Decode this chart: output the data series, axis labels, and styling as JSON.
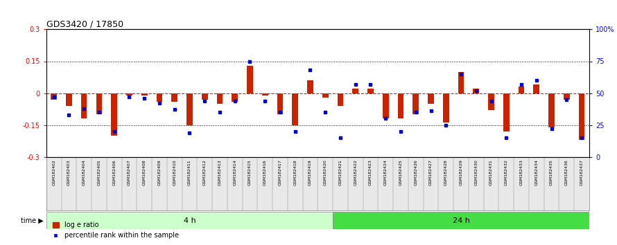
{
  "title": "GDS3420 / 17850",
  "samples": [
    "GSM182402",
    "GSM182403",
    "GSM182404",
    "GSM182405",
    "GSM182406",
    "GSM182407",
    "GSM182408",
    "GSM182409",
    "GSM182410",
    "GSM182411",
    "GSM182412",
    "GSM182413",
    "GSM182414",
    "GSM182415",
    "GSM182416",
    "GSM182417",
    "GSM182418",
    "GSM182419",
    "GSM182420",
    "GSM182421",
    "GSM182422",
    "GSM182423",
    "GSM182424",
    "GSM182425",
    "GSM182426",
    "GSM182427",
    "GSM182428",
    "GSM182429",
    "GSM182430",
    "GSM182431",
    "GSM182432",
    "GSM182433",
    "GSM182434",
    "GSM182435",
    "GSM182436",
    "GSM182437"
  ],
  "log_ratio": [
    -0.03,
    -0.06,
    -0.12,
    -0.1,
    -0.2,
    -0.01,
    -0.01,
    -0.04,
    -0.04,
    -0.15,
    -0.03,
    -0.05,
    -0.04,
    0.13,
    -0.01,
    -0.1,
    -0.15,
    0.06,
    -0.02,
    -0.06,
    0.02,
    0.02,
    -0.12,
    -0.12,
    -0.1,
    -0.05,
    -0.14,
    0.1,
    0.02,
    -0.08,
    -0.18,
    0.03,
    0.04,
    -0.16,
    -0.03,
    -0.22
  ],
  "percentile": [
    47,
    33,
    38,
    35,
    20,
    47,
    46,
    42,
    37,
    19,
    44,
    35,
    44,
    75,
    44,
    35,
    20,
    68,
    35,
    15,
    57,
    57,
    30,
    20,
    35,
    36,
    25,
    65,
    52,
    44,
    15,
    57,
    60,
    22,
    45,
    15
  ],
  "group1_count": 19,
  "group2_count": 17,
  "group1_label": "4 h",
  "group2_label": "24 h",
  "group1_color": "#ccffcc",
  "group2_color": "#44dd44",
  "bar_color": "#cc2200",
  "dot_color": "#0000cc",
  "ylim_left": [
    -0.3,
    0.3
  ],
  "ylim_right": [
    0,
    100
  ],
  "yticks_left": [
    -0.3,
    -0.15,
    0,
    0.15,
    0.3
  ],
  "yticks_right": [
    0,
    25,
    50,
    75,
    100
  ],
  "ytick_labels_right": [
    "0",
    "25",
    "50",
    "75",
    "100%"
  ],
  "hline_dotted": [
    0.15,
    -0.15
  ],
  "time_label": "time"
}
